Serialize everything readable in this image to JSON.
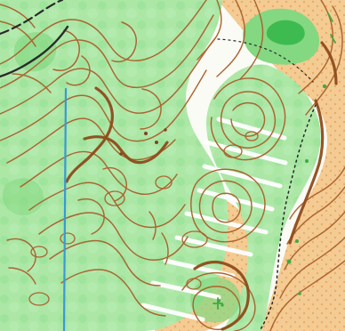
{
  "map": {
    "type": "orienteering-map",
    "colors": {
      "paper": "#fbfbf5",
      "open_land": "#f3c98f",
      "open_land_dots": "#e6a75d",
      "forest_light": "#a9e6a3",
      "forest_mid": "#7fd77c",
      "forest_dark": "#36b94a",
      "contour": "#a85a24",
      "contour_index": "#8b4513",
      "stream": "#2f95d7",
      "track_black": "#222222",
      "white_forest": "#ffffff",
      "green_point": "#37a83a"
    },
    "symbols": [
      "contour-lines",
      "index-contours",
      "form-lines",
      "green-vegetation",
      "open-land",
      "rough-open-land-dots",
      "white-forest-stripes",
      "stream",
      "black-track",
      "dotted-boundary",
      "green-point-features"
    ]
  }
}
